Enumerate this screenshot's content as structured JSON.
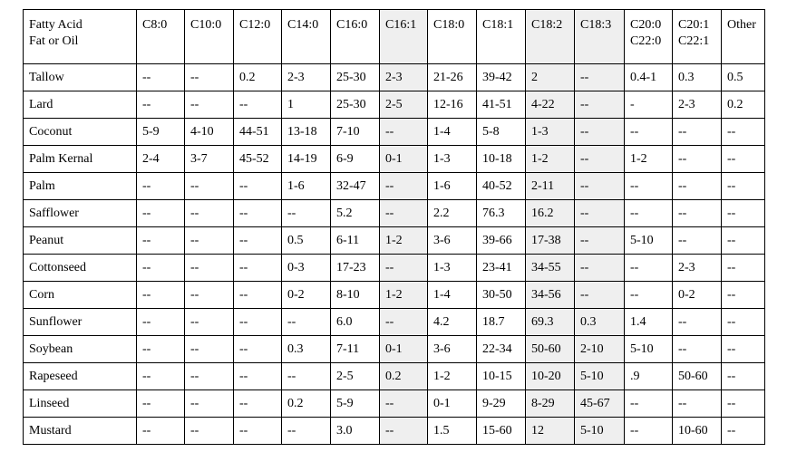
{
  "table": {
    "header": [
      [
        "Fatty Acid",
        "Fat or Oil"
      ],
      [
        "C8:0"
      ],
      [
        "C10:0"
      ],
      [
        "C12:0"
      ],
      [
        "C14:0"
      ],
      [
        "C16:0"
      ],
      [
        "C16:1"
      ],
      [
        "C18:0"
      ],
      [
        "C18:1"
      ],
      [
        "C18:2"
      ],
      [
        "C18:3"
      ],
      [
        "C20:0",
        "C22:0"
      ],
      [
        "C20:1",
        "C22:1"
      ],
      [
        "Other"
      ]
    ],
    "rows": [
      [
        "Tallow",
        "--",
        "--",
        "0.2",
        "2-3",
        "25-30",
        "2-3",
        "21-26",
        "39-42",
        "2",
        "--",
        "0.4-1",
        "0.3",
        "0.5"
      ],
      [
        "Lard",
        "--",
        "--",
        "--",
        "1",
        "25-30",
        "2-5",
        "12-16",
        "41-51",
        "4-22",
        "--",
        "-",
        "2-3",
        "0.2"
      ],
      [
        "Coconut",
        "5-9",
        "4-10",
        "44-51",
        "13-18",
        "7-10",
        "--",
        "1-4",
        "5-8",
        "1-3",
        "--",
        "--",
        "--",
        "--"
      ],
      [
        "Palm Kernal",
        "2-4",
        "3-7",
        "45-52",
        "14-19",
        "6-9",
        "0-1",
        "1-3",
        "10-18",
        "1-2",
        "--",
        "1-2",
        "--",
        "--"
      ],
      [
        "Palm",
        "--",
        "--",
        "--",
        "1-6",
        "32-47",
        "--",
        "1-6",
        "40-52",
        "2-11",
        "--",
        "--",
        "--",
        "--"
      ],
      [
        "Safflower",
        "--",
        "--",
        "--",
        "--",
        "5.2",
        "--",
        "2.2",
        "76.3",
        "16.2",
        "--",
        "--",
        "--",
        "--"
      ],
      [
        "Peanut",
        "--",
        "--",
        "--",
        "0.5",
        "6-11",
        "1-2",
        "3-6",
        "39-66",
        "17-38",
        "--",
        "5-10",
        "--",
        "--"
      ],
      [
        "Cottonseed",
        "--",
        "--",
        "--",
        "0-3",
        "17-23",
        "--",
        "1-3",
        "23-41",
        "34-55",
        "--",
        "--",
        "2-3",
        "--"
      ],
      [
        "Corn",
        "--",
        "--",
        "--",
        "0-2",
        "8-10",
        "1-2",
        "1-4",
        "30-50",
        "34-56",
        "--",
        "--",
        "0-2",
        "--"
      ],
      [
        "Sunflower",
        "--",
        "--",
        "--",
        "--",
        "6.0",
        "--",
        "4.2",
        "18.7",
        "69.3",
        "0.3",
        "1.4",
        "--",
        "--"
      ],
      [
        "Soybean",
        "--",
        "--",
        "--",
        "0.3",
        "7-11",
        "0-1",
        "3-6",
        "22-34",
        "50-60",
        "2-10",
        "5-10",
        "--",
        "--"
      ],
      [
        "Rapeseed",
        "--",
        "--",
        "--",
        "--",
        "2-5",
        "0.2",
        "1-2",
        "10-15",
        "10-20",
        "5-10",
        ".9",
        "50-60",
        "--"
      ],
      [
        "Linseed",
        "--",
        "--",
        "--",
        "0.2",
        "5-9",
        "--",
        "0-1",
        "9-29",
        "8-29",
        "45-67",
        "--",
        "--",
        "--"
      ],
      [
        "Mustard",
        "--",
        "--",
        "--",
        "--",
        "3.0",
        "--",
        "1.5",
        "15-60",
        "12",
        "5-10",
        "--",
        "10-60",
        "--"
      ]
    ]
  }
}
